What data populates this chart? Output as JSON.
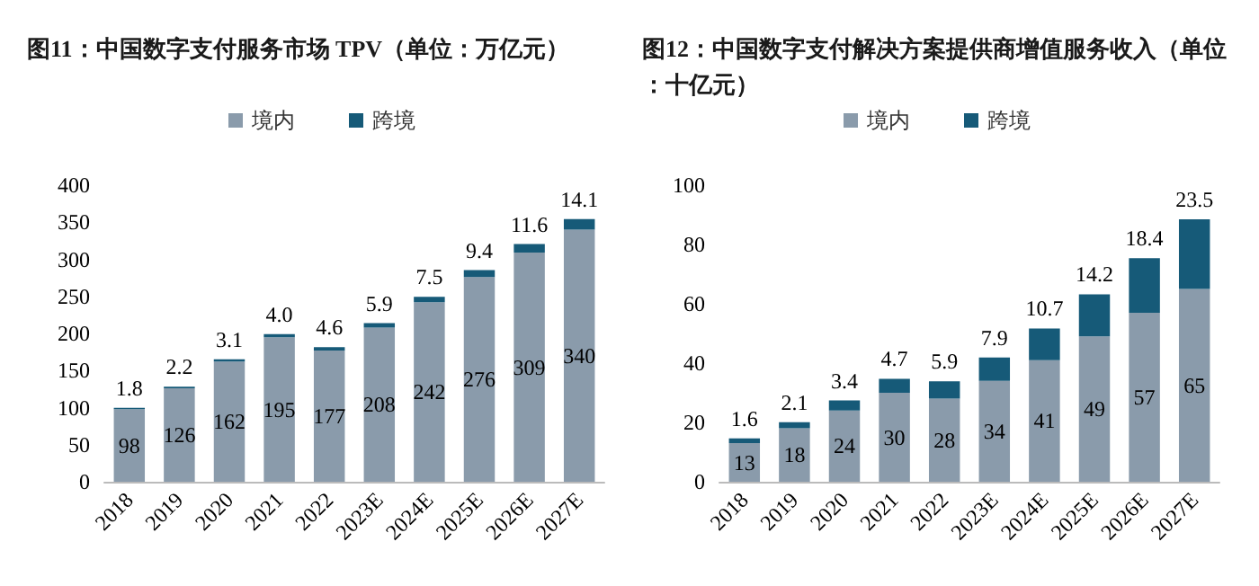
{
  "chart_data": [
    {
      "type": "bar",
      "title": "图11：中国数字支付服务市场 TPV（单位：万亿元）",
      "categories": [
        "2018",
        "2019",
        "2020",
        "2021",
        "2022",
        "2023E",
        "2024E",
        "2025E",
        "2026E",
        "2027E"
      ],
      "stacked": true,
      "data_labels": true,
      "legend": "top",
      "grid": false,
      "ylim": [
        0,
        400
      ],
      "yticks": [
        0,
        50,
        100,
        150,
        200,
        250,
        300,
        350,
        400
      ],
      "series": [
        {
          "name": "境内",
          "color": "#8a9bab",
          "values": [
            98,
            126,
            162,
            195,
            177,
            208,
            242,
            276,
            309,
            340
          ]
        },
        {
          "name": "跨境",
          "color": "#165a78",
          "values": [
            1.8,
            2.2,
            3.1,
            4.0,
            4.6,
            5.9,
            7.5,
            9.4,
            11.6,
            14.1
          ],
          "value_labels": [
            "1.8",
            "2.2",
            "3.1",
            "4.0",
            "4.6",
            "5.9",
            "7.5",
            "9.4",
            "11.6",
            "14.1"
          ]
        }
      ]
    },
    {
      "type": "bar",
      "title": "图12：中国数字支付解决方案提供商增值服务收入（单位：十亿元）",
      "categories": [
        "2018",
        "2019",
        "2020",
        "2021",
        "2022",
        "2023E",
        "2024E",
        "2025E",
        "2026E",
        "2027E"
      ],
      "stacked": true,
      "data_labels": true,
      "legend": "top",
      "grid": false,
      "ylim": [
        0,
        100
      ],
      "yticks": [
        0,
        20,
        40,
        60,
        80,
        100
      ],
      "series": [
        {
          "name": "境内",
          "color": "#8a9bab",
          "values": [
            13,
            18,
            24,
            30,
            28,
            34,
            41,
            49,
            57,
            65
          ]
        },
        {
          "name": "跨境",
          "color": "#165a78",
          "values": [
            1.6,
            2.1,
            3.4,
            4.7,
            5.9,
            7.9,
            10.7,
            14.2,
            18.4,
            23.5
          ]
        }
      ]
    }
  ]
}
